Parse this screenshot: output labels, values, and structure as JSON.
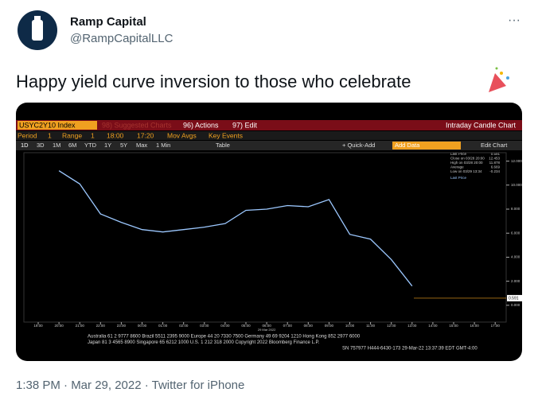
{
  "tweet": {
    "author_name": "Ramp Capital",
    "handle": "@RampCapitalLLC",
    "more": "···",
    "text": "Happy yield curve inversion to those who celebrate",
    "timestamp": "1:38 PM · Mar 29, 2022 · Twitter for iPhone"
  },
  "terminal": {
    "ticker": "USYC2Y10 Index",
    "row1": [
      "98) Suggested Charts",
      "96) Actions",
      "97) Edit"
    ],
    "chart_title": "Intraday Candle Chart",
    "row2": [
      "Period",
      "1",
      "Range",
      "1",
      "18:00",
      "17:20",
      "Mov Avgs",
      "Key Events"
    ],
    "row3": [
      "1D",
      "3D",
      "1M",
      "6M",
      "YTD",
      "1Y",
      "5Y",
      "Max",
      "1 Min",
      "Table"
    ],
    "quick_add": "+ Quick-Add",
    "add_data": "Add Data",
    "edit_chart": "Edit Chart",
    "legend": [
      "Last Price",
      "Close on 03/28 20:00",
      "High on 03/28 20:00",
      "Average",
      "Low on 03/29 13:34"
    ],
    "legend_values": [
      "0.591",
      "12.453",
      "11.878",
      "6.669",
      "-0.234"
    ],
    "date_label": "29 Mar 2022",
    "footer": [
      "Australia 61 2 9777 8600 Brazil 5511 2395 9000 Europe 44 20 7330 7500 Germany 49 69 9204 1210 Hong Kong 852 2977 6000",
      "Japan 81 3 4565 8900     Singapore 65 6212 1000     U.S. 1 212 318 2000     Copyright 2022 Bloomberg Finance L.P.",
      "SN 757977 H444-6430-173 29-Mar-22 13:37:39 EDT  GMT-4:00"
    ]
  },
  "chart_data": {
    "type": "line",
    "categories": [
      "19:00",
      "20:00",
      "21:00",
      "22:00",
      "23:00",
      "00:00",
      "01:00",
      "02:00",
      "03:00",
      "04:00",
      "05:00",
      "06:00",
      "07:00",
      "08:00",
      "09:00",
      "10:00",
      "11:00",
      "12:00",
      "13:00",
      "14:00",
      "15:00",
      "16:00",
      "17:00"
    ],
    "series": [
      {
        "name": "Last Price",
        "color": "#9cc8ff",
        "values": [
          null,
          11.2,
          10.1,
          7.6,
          6.9,
          6.3,
          6.1,
          6.3,
          6.5,
          6.8,
          7.9,
          8.0,
          8.3,
          8.2,
          8.8,
          5.9,
          5.5,
          3.8,
          1.6,
          null,
          null,
          null,
          null
        ]
      }
    ],
    "last_price": 0.591,
    "ylim": [
      -1.4,
      12.7
    ],
    "yticks": [
      {
        "value": 12,
        "label": "12.000"
      },
      {
        "value": 10,
        "label": "10.000"
      },
      {
        "value": 8,
        "label": "8.000"
      },
      {
        "value": 6,
        "label": "6.000"
      },
      {
        "value": 4,
        "label": "4.000"
      },
      {
        "value": 2,
        "label": "2.000"
      },
      {
        "value": 0,
        "label": "0.000"
      }
    ],
    "grid": false
  }
}
